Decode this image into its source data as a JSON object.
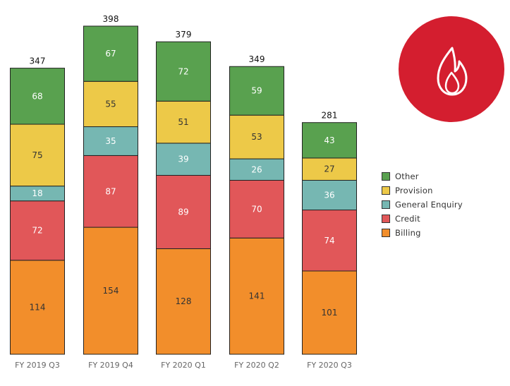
{
  "chart_data": {
    "type": "bar",
    "stacked": true,
    "categories": [
      "FY 2019 Q3",
      "FY 2019 Q4",
      "FY 2020 Q1",
      "FY 2020 Q2",
      "FY 2020 Q3"
    ],
    "totals": [
      347,
      398,
      379,
      349,
      281
    ],
    "series": [
      {
        "name": "Billing",
        "color": "#f28e2b",
        "values": [
          114,
          154,
          128,
          141,
          101
        ]
      },
      {
        "name": "Credit",
        "color": "#e15759",
        "values": [
          72,
          87,
          89,
          70,
          74
        ]
      },
      {
        "name": "General Enquiry",
        "color": "#76b7b2",
        "values": [
          18,
          35,
          39,
          26,
          36
        ]
      },
      {
        "name": "Provision",
        "color": "#edc948",
        "values": [
          75,
          55,
          51,
          53,
          27
        ]
      },
      {
        "name": "Other",
        "color": "#59a14f",
        "values": [
          68,
          67,
          72,
          59,
          43
        ]
      }
    ],
    "legend_order": [
      "Other",
      "Provision",
      "General Enquiry",
      "Credit",
      "Billing"
    ],
    "legend_position": "right",
    "grid": false,
    "ylim": [
      0,
      398
    ]
  },
  "badge": {
    "icon": "flame-icon",
    "color": "#d41e2f"
  }
}
